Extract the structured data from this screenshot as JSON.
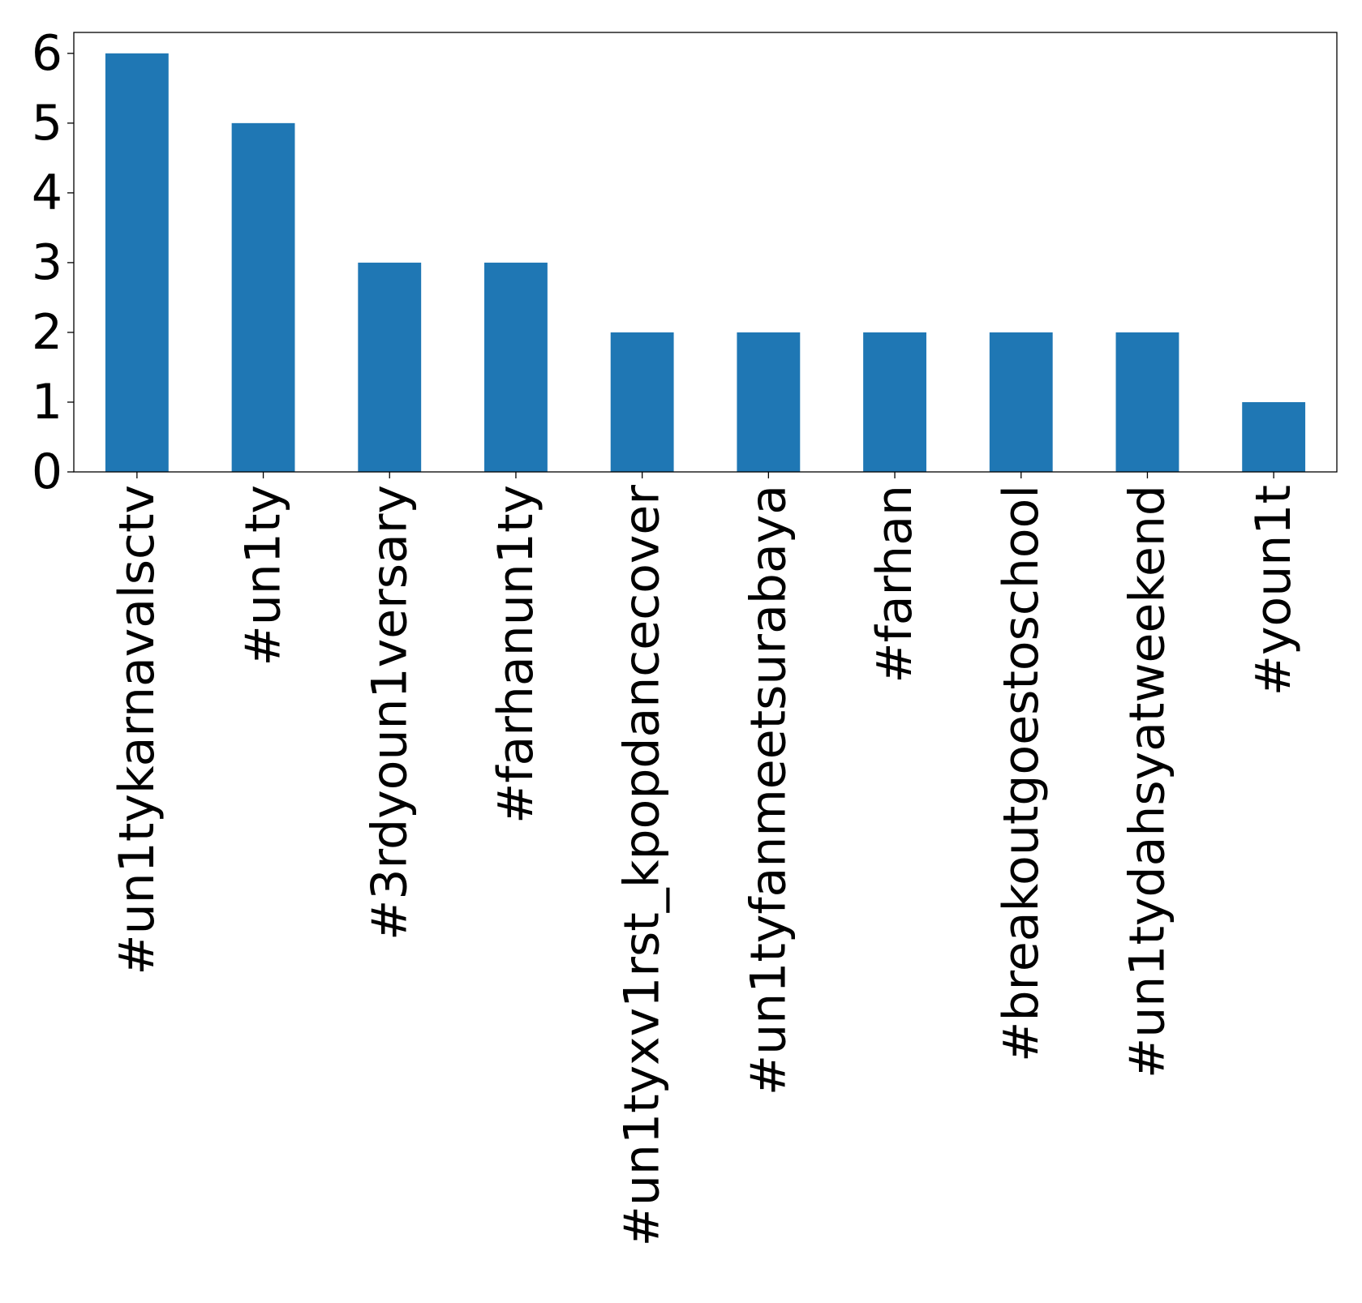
{
  "chart_data": {
    "type": "bar",
    "categories": [
      "#un1tykarnavalsctv",
      "#un1ty",
      "#3rdyoun1versary",
      "#farhanun1ty",
      "#un1tyxv1rst_kpopdancecover",
      "#un1tyfanmeetsurabaya",
      "#farhan",
      "#breakoutgoestoschool",
      "#un1tydahsyatweekend",
      "#youn1t"
    ],
    "values": [
      6,
      5,
      3,
      3,
      2,
      2,
      2,
      2,
      2,
      1
    ],
    "title": "",
    "xlabel": "",
    "ylabel": "",
    "ylim": [
      0,
      6.3
    ],
    "yticks": [
      0,
      1,
      2,
      3,
      4,
      5,
      6
    ],
    "bar_color": "#1f77b4",
    "grid": false,
    "legend": "none"
  }
}
